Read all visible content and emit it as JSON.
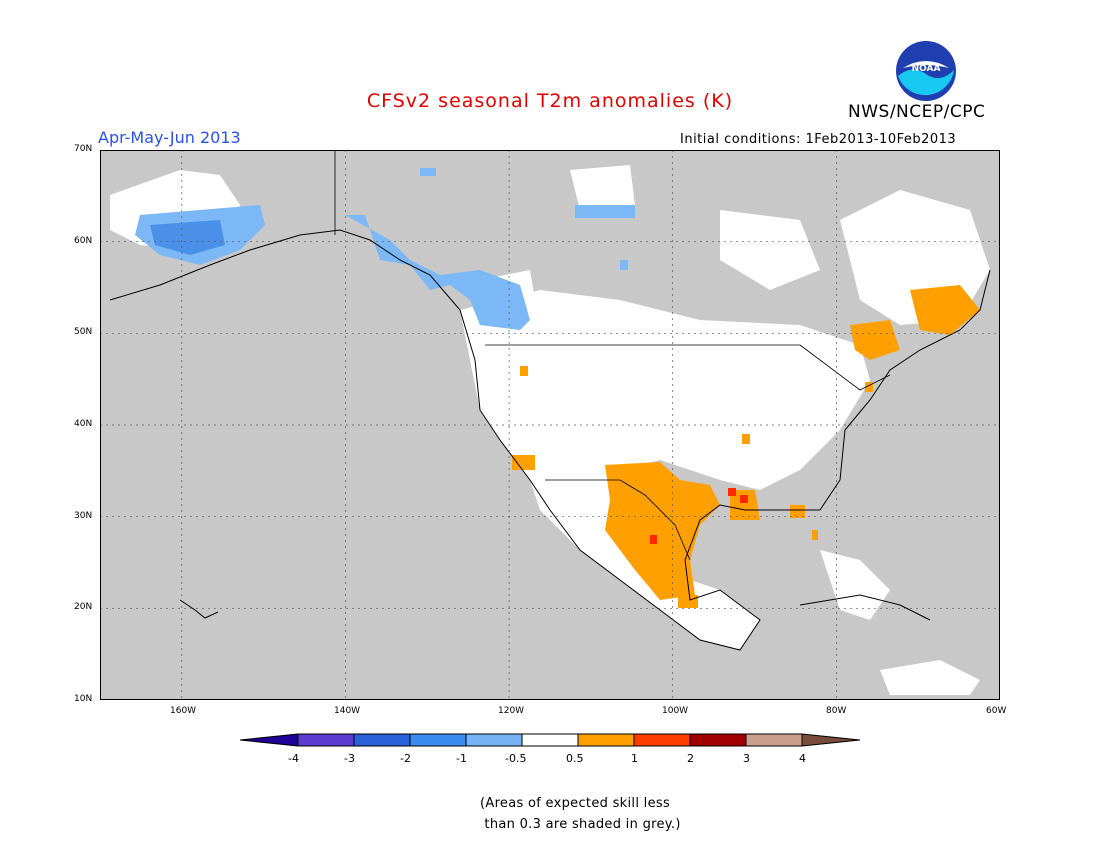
{
  "title": "CFSv2 seasonal T2m anomalies (K)",
  "period": "Apr-May-Jun 2013",
  "initial_conditions": "Initial conditions: 1Feb2013-10Feb2013",
  "agency": "NWS/NCEP/CPC",
  "logo": {
    "text": "NOAA",
    "icon": "noaa-logo-icon"
  },
  "map": {
    "region": "North America",
    "lon_range": [
      -170,
      -60
    ],
    "lat_range": [
      10,
      70
    ],
    "lat_labels": [
      "70N",
      "60N",
      "50N",
      "40N",
      "30N",
      "20N",
      "10N"
    ],
    "lon_labels": [
      "160W",
      "140W",
      "120W",
      "100W",
      "80W",
      "60W"
    ],
    "grey_meaning": "skill less than 0.3",
    "colors": {
      "ocean_grey": "#c8c8c8",
      "land_white": "#ffffff",
      "light_blue": "#7bb8f5",
      "mid_blue": "#4a90e8",
      "orange": "#ffa000",
      "red": "#ff2800"
    }
  },
  "colorbar": {
    "labels": [
      "-4",
      "-3",
      "-2",
      "-1",
      "-0.5",
      "0.5",
      "1",
      "2",
      "3",
      "4"
    ],
    "colors": [
      "#1e0096",
      "#5a3cd2",
      "#2a60d8",
      "#3c8cf0",
      "#78b4f5",
      "#ffffff",
      "#ffa000",
      "#ff3c00",
      "#a00000",
      "#c8a08c",
      "#784b3c"
    ]
  },
  "note": "(Areas of expected skill less\n than 0.3 are shaded in grey.)"
}
